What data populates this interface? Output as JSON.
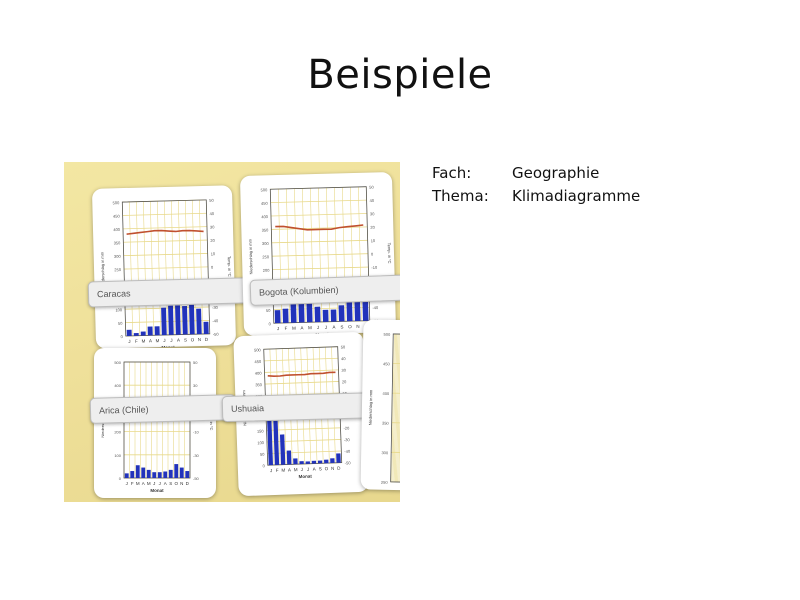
{
  "slide": {
    "title": "Beispiele",
    "info": {
      "fach_label": "Fach:",
      "fach_value": "Geographie",
      "thema_label": "Thema:",
      "thema_value": "Klimadiagramme"
    }
  },
  "photo": {
    "colors": {
      "background": "#efe09a",
      "grid": "#e8d98a",
      "temperature": "#c0502e",
      "precipitation": "#2233bb"
    },
    "cards": [
      {
        "key": "caracas",
        "label": "Caracas",
        "precip_ticks": [
          "500",
          "450",
          "400",
          "350",
          "300",
          "250",
          "200",
          "150",
          "100",
          "50",
          "0"
        ],
        "temp_ticks": [
          "50",
          "40",
          "30",
          "20",
          "10",
          "0",
          "-10",
          "-20",
          "-30",
          "-40",
          "-50"
        ],
        "months": [
          "J",
          "F",
          "M",
          "A",
          "M",
          "J",
          "J",
          "A",
          "S",
          "O",
          "N",
          "D"
        ],
        "xlabel": "Monat",
        "ylabel_left": "Niederschlag in mm",
        "ylabel_right": "Temp. in °C",
        "temperature": [
          26,
          26.5,
          27,
          27.5,
          28,
          28,
          27.5,
          27,
          27.5,
          27.5,
          27,
          26.5
        ],
        "precipitation": [
          23,
          10,
          15,
          33,
          33,
          102,
          109,
          109,
          106,
          110,
          95,
          45
        ]
      },
      {
        "key": "bogota",
        "label": "Bogota (Kolumbien)",
        "precip_ticks": [
          "500",
          "450",
          "400",
          "350",
          "300",
          "250",
          "200",
          "150",
          "100",
          "50",
          "0"
        ],
        "temp_ticks": [
          "50",
          "40",
          "30",
          "20",
          "10",
          "0",
          "-10",
          "-20",
          "-30",
          "-40",
          "-50"
        ],
        "months": [
          "J",
          "F",
          "M",
          "A",
          "M",
          "J",
          "J",
          "A",
          "S",
          "O",
          "N",
          "D"
        ],
        "xlabel": "Monat",
        "ylabel_left": "Niederschlag in mm",
        "ylabel_right": "Temp. in °C",
        "temperature": [
          22,
          22,
          21,
          20,
          19,
          19,
          19,
          19,
          20,
          20.5,
          21,
          21.5
        ],
        "precipitation": [
          48,
          53,
          80,
          110,
          104,
          57,
          45,
          45,
          60,
          144,
          120,
          70
        ]
      },
      {
        "key": "arica",
        "label": "Arica (Chile)",
        "precip_ticks": [
          "500",
          "400",
          "300",
          "200",
          "100",
          "0"
        ],
        "temp_ticks": [
          "50",
          "40",
          "30",
          "20",
          "10",
          "0",
          "-10",
          "-20",
          "-30",
          "-40",
          "-50"
        ],
        "months": [
          "J",
          "F",
          "M",
          "A",
          "M",
          "J",
          "J",
          "A",
          "S",
          "O",
          "N",
          "D"
        ],
        "xlabel": "Monat",
        "ylabel_left": "Niederschlag in mm",
        "ylabel_right": "Temp. in °C",
        "temperature": [],
        "precipitation": [
          20,
          30,
          55,
          45,
          35,
          25,
          25,
          28,
          35,
          60,
          45,
          30
        ]
      },
      {
        "key": "ushuaia",
        "label": "Ushuaia",
        "precip_ticks": [
          "500",
          "450",
          "400",
          "350",
          "300",
          "250",
          "200",
          "150",
          "100",
          "50",
          "0"
        ],
        "temp_ticks": [
          "50",
          "40",
          "30",
          "20",
          "10",
          "0",
          "-10",
          "-20",
          "-30",
          "-40",
          "-50"
        ],
        "months": [
          "J",
          "F",
          "M",
          "A",
          "M",
          "J",
          "J",
          "A",
          "S",
          "O",
          "N",
          "D"
        ],
        "xlabel": "Monat",
        "ylabel_left": "Niederschlag in mm",
        "ylabel_right": "Temp. in °C",
        "temperature": [
          27,
          26.5,
          26.5,
          27,
          27,
          27,
          27,
          27.5,
          27.5,
          27.5,
          28,
          28
        ],
        "precipitation": [
          200,
          190,
          130,
          60,
          25,
          12,
          10,
          12,
          12,
          15,
          20,
          40
        ]
      },
      {
        "key": "partial-right",
        "label": "",
        "precip_ticks": [
          "500",
          "450",
          "400",
          "350",
          "300",
          "250"
        ],
        "temp_ticks": [],
        "months": [],
        "xlabel": "",
        "ylabel_left": "Niederschlag in mm",
        "ylabel_right": "",
        "temperature": [],
        "precipitation": []
      }
    ]
  }
}
